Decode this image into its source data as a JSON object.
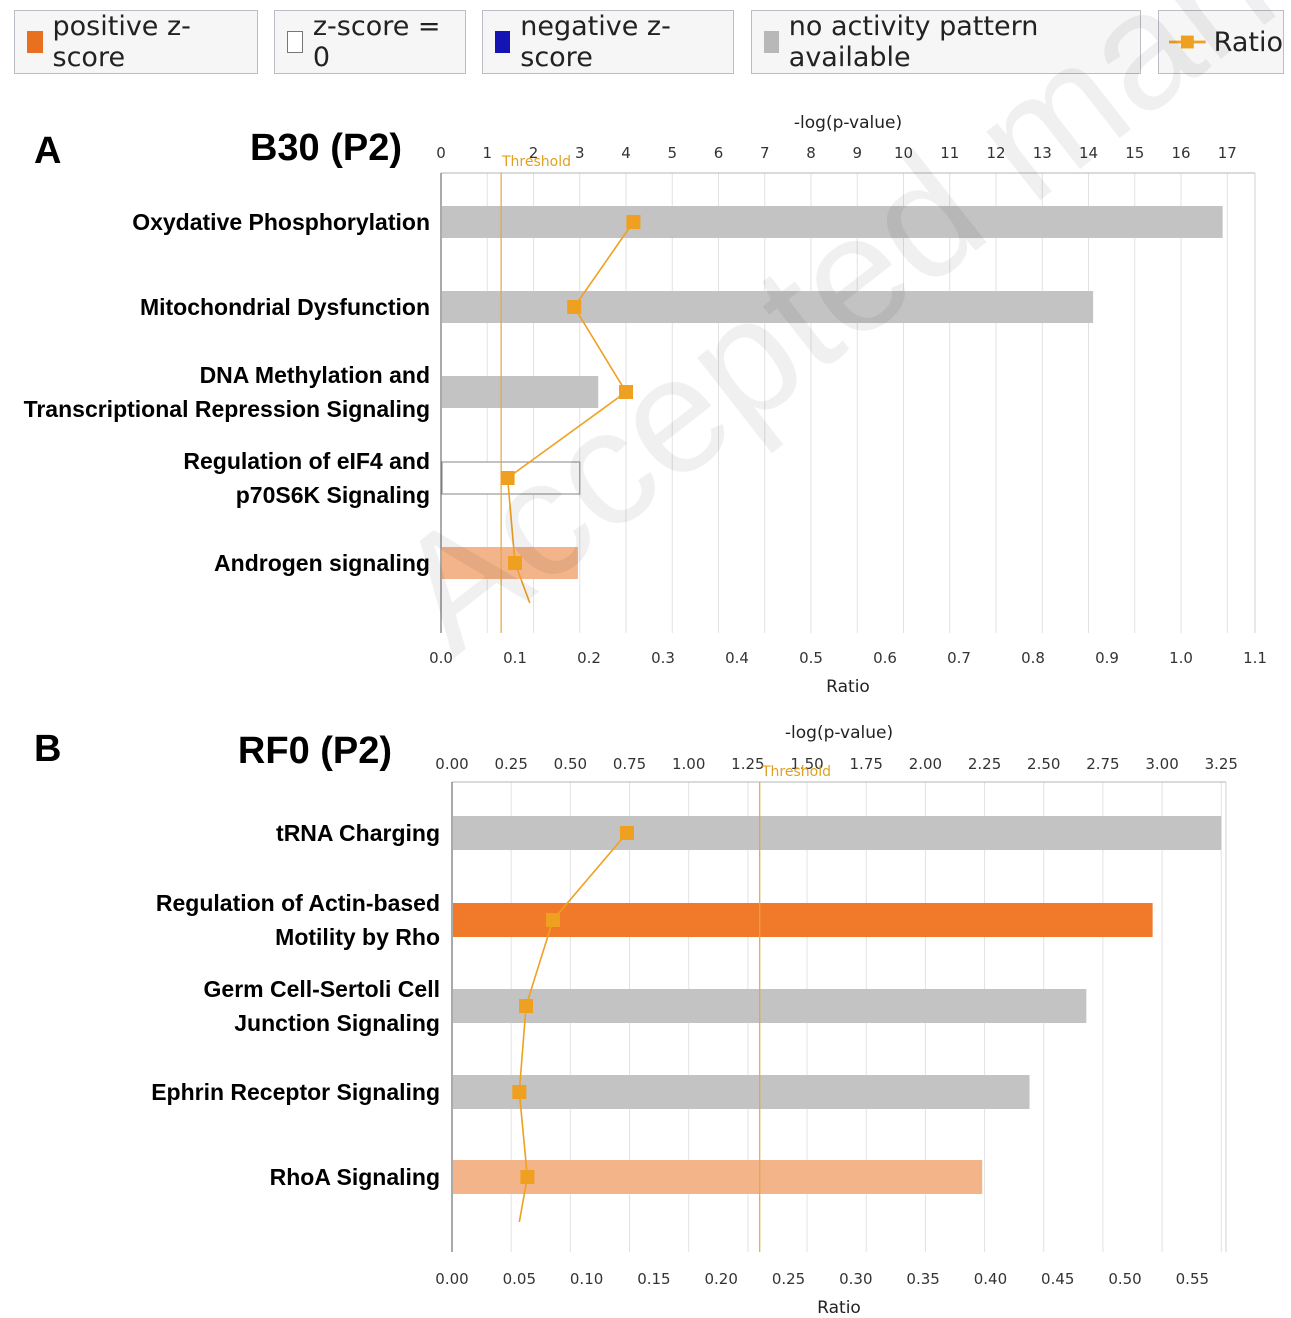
{
  "legend": {
    "items": [
      {
        "label": "positive z-score",
        "color": "#e8701e",
        "kind": "swatch"
      },
      {
        "label": "z-score = 0",
        "color": "#ffffff",
        "kind": "swatch-outline"
      },
      {
        "label": "negative z-score",
        "color": "#1414b4",
        "kind": "swatch"
      },
      {
        "label": "no activity pattern available",
        "color": "#b8b8b8",
        "kind": "swatch"
      },
      {
        "label": "Ratio",
        "color": "#f0a020",
        "kind": "line"
      }
    ]
  },
  "watermark": "Accepted manuscript",
  "colors": {
    "gray": "#c3c3c3",
    "orange": "#f07a2a",
    "light_orange": "#f3b48a",
    "ratio_line": "#f0a020",
    "threshold": "#e3a83a",
    "grid": "#e2e2e2"
  },
  "chart_data": [
    {
      "panel": "A",
      "title": "B30 (P2)",
      "type": "bar",
      "orientation": "horizontal",
      "categories": [
        [
          "Oxydative Phosphorylation"
        ],
        [
          "Mitochondrial Dysfunction"
        ],
        [
          "DNA Methylation and",
          "Transcriptional Repression Signaling"
        ],
        [
          "Regulation of eIF4 and",
          "p70S6K Signaling"
        ],
        [
          "Androgen signaling"
        ]
      ],
      "top_axis": {
        "label": "-log(p-value)",
        "ticks": [
          "0",
          "1",
          "2",
          "3",
          "4",
          "5",
          "6",
          "7",
          "8",
          "9",
          "10",
          "11",
          "12",
          "13",
          "14",
          "15",
          "16",
          "17"
        ],
        "range": [
          0,
          17.6
        ]
      },
      "bottom_axis": {
        "label": "Ratio",
        "ticks": [
          "0.0",
          "0.1",
          "0.2",
          "0.3",
          "0.4",
          "0.5",
          "0.6",
          "0.7",
          "0.8",
          "0.9",
          "1.0",
          "1.1"
        ],
        "range": [
          0,
          1.1
        ]
      },
      "neg_log_p": [
        16.9,
        14.1,
        3.4,
        3.0,
        2.96
      ],
      "bar_colors": [
        "gray",
        "gray",
        "gray",
        "outline",
        "light_orange"
      ],
      "ratio": [
        0.26,
        0.18,
        0.25,
        0.09,
        0.1
      ],
      "ratio_tail": 0.12,
      "threshold": {
        "label": "Threshold",
        "value": 1.3
      }
    },
    {
      "panel": "B",
      "title": "RF0 (P2)",
      "type": "bar",
      "orientation": "horizontal",
      "categories": [
        [
          "tRNA Charging"
        ],
        [
          "Regulation of Actin-based",
          "Motility by Rho"
        ],
        [
          "Germ Cell-Sertoli Cell",
          "Junction Signaling"
        ],
        [
          "Ephrin Receptor Signaling"
        ],
        [
          "RhoA Signaling"
        ]
      ],
      "top_axis": {
        "label": "-log(p-value)",
        "ticks": [
          "0.00",
          "0.25",
          "0.50",
          "0.75",
          "1.00",
          "1.25",
          "1.50",
          "1.75",
          "2.00",
          "2.25",
          "2.50",
          "2.75",
          "3.00",
          "3.25"
        ],
        "range": [
          0,
          3.27
        ]
      },
      "bottom_axis": {
        "label": "Ratio",
        "ticks": [
          "0.00",
          "0.05",
          "0.10",
          "0.15",
          "0.20",
          "0.25",
          "0.30",
          "0.35",
          "0.40",
          "0.45",
          "0.50",
          "0.55"
        ],
        "range": [
          0,
          0.575
        ]
      },
      "neg_log_p": [
        3.25,
        2.96,
        2.68,
        2.44,
        2.24
      ],
      "bar_colors": [
        "gray",
        "orange",
        "gray",
        "gray",
        "light_orange"
      ],
      "ratio": [
        0.13,
        0.075,
        0.055,
        0.05,
        0.056
      ],
      "ratio_tail": 0.05,
      "threshold": {
        "label": "Threshold",
        "value": 1.3
      }
    }
  ]
}
